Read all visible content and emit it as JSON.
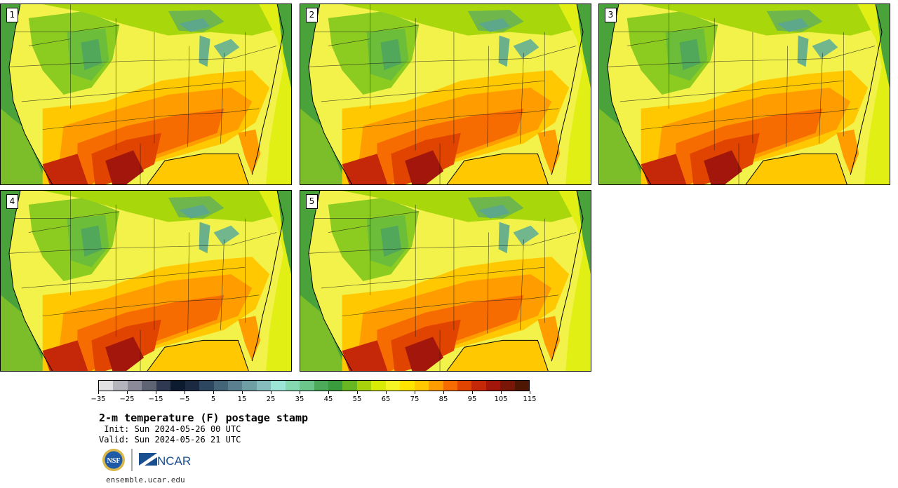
{
  "panels": [
    {
      "number": "1"
    },
    {
      "number": "2"
    },
    {
      "number": "3"
    },
    {
      "number": "4"
    },
    {
      "number": "5"
    }
  ],
  "colorbar": {
    "colors": [
      "#e1e1e3",
      "#b4b4bc",
      "#8a8a98",
      "#5e6474",
      "#2f3a52",
      "#0d1b30",
      "#1b2a40",
      "#2e4760",
      "#446478",
      "#5a8090",
      "#6f9ea5",
      "#86bcbd",
      "#9be4d6",
      "#86d8b0",
      "#6cc58a",
      "#4daa5a",
      "#3a9a3e",
      "#69b623",
      "#a7d20c",
      "#d9ec05",
      "#f5f526",
      "#ffe400",
      "#ffc800",
      "#ff9d00",
      "#f66c00",
      "#e04400",
      "#c52808",
      "#a2160c",
      "#7a1608",
      "#4d1704"
    ],
    "tick_labels": [
      "−35",
      "−25",
      "−15",
      "−5",
      "5",
      "15",
      "25",
      "35",
      "45",
      "55",
      "65",
      "75",
      "85",
      "95",
      "105",
      "115"
    ]
  },
  "title": "2-m temperature (F) postage stamp",
  "init_line": " Init: Sun 2024-05-26 00 UTC",
  "valid_line": "Valid: Sun 2024-05-26 21 UTC",
  "logos": {
    "left": "NSF",
    "right": "NCAR"
  },
  "site": "ensemble.ucar.edu"
}
